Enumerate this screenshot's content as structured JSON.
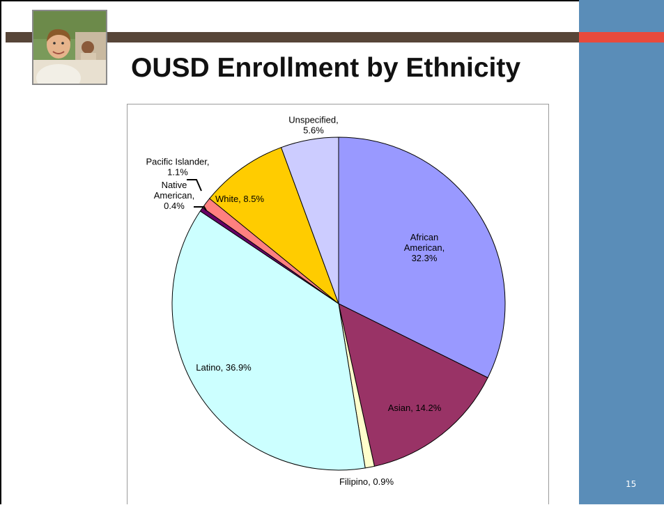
{
  "slide": {
    "title": "OUSD Enrollment by Ethnicity",
    "page_number": "15",
    "colors": {
      "side_panel": "#5a8db8",
      "top_bar": "#574538",
      "accent": "#e84a3c"
    }
  },
  "photo": {
    "icon": "student-photo"
  },
  "chart_data": {
    "type": "pie",
    "title": "",
    "labels": [
      "African American",
      "Asian",
      "Filipino",
      "Latino",
      "Native American",
      "Pacific Islander",
      "White",
      "Unspecified"
    ],
    "values": [
      32.3,
      14.2,
      0.9,
      36.9,
      0.4,
      1.1,
      8.5,
      5.6
    ],
    "unit": "%",
    "colors": [
      "#9999ff",
      "#993366",
      "#ffffcc",
      "#ccffff",
      "#660066",
      "#ff8080",
      "#ffcc00",
      "#ccccff"
    ],
    "data_labels": [
      [
        "African",
        "American,",
        "32.3%"
      ],
      [
        "Asian, 14.2%"
      ],
      [
        "Filipino, 0.9%"
      ],
      [
        "Latino, 36.9%"
      ],
      [
        "Native",
        "American,",
        "0.4%"
      ],
      [
        "Pacific Islander,",
        "1.1%"
      ],
      [
        "White, 8.5%"
      ],
      [
        "Unspecified,",
        "5.6%"
      ]
    ]
  }
}
